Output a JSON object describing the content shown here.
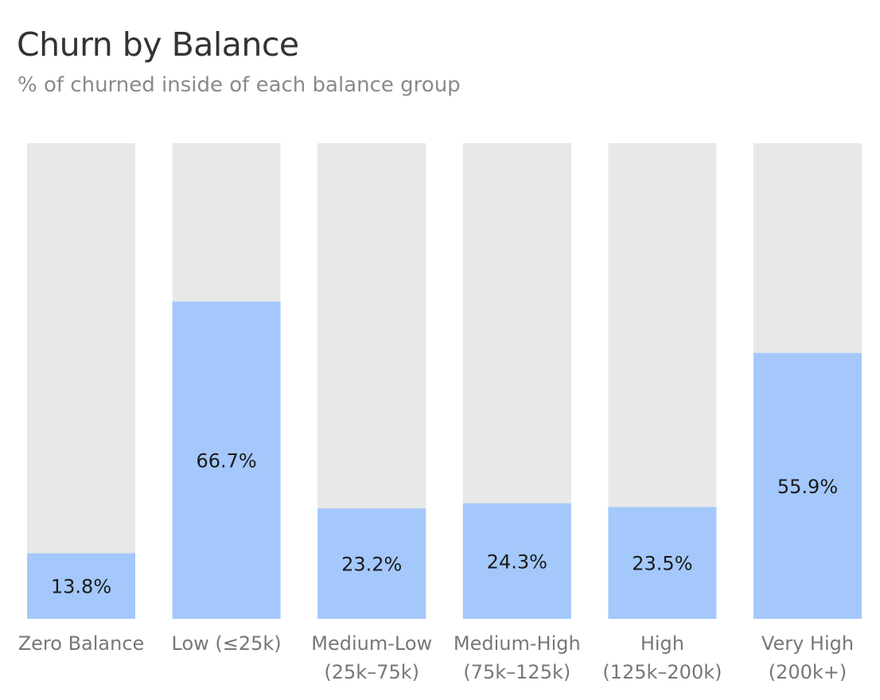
{
  "title": "Churn by Balance",
  "subtitle": "% of churned inside of each balance group",
  "colors": {
    "fill": "#a4c8fb",
    "track": "#e8e8e8",
    "title": "#333333",
    "subtitle": "#8a8a8a",
    "category_label": "#777777",
    "value_label": "#1a1a1a"
  },
  "chart_data": {
    "type": "bar",
    "stacked_to_100": true,
    "categories": [
      [
        "Zero Balance"
      ],
      [
        "Low (≤25k)"
      ],
      [
        "Medium-Low",
        "(25k–75k)"
      ],
      [
        "Medium-High",
        "(75k–125k)"
      ],
      [
        "High",
        "(125k–200k)"
      ],
      [
        "Very High",
        "(200k+)"
      ]
    ],
    "values": [
      13.8,
      66.7,
      23.2,
      24.3,
      23.5,
      55.9
    ],
    "value_labels": [
      "13.8%",
      "66.7%",
      "23.2%",
      "24.3%",
      "23.5%",
      "55.9%"
    ],
    "ylim": [
      0,
      100
    ],
    "grid": false,
    "legend": "none"
  }
}
